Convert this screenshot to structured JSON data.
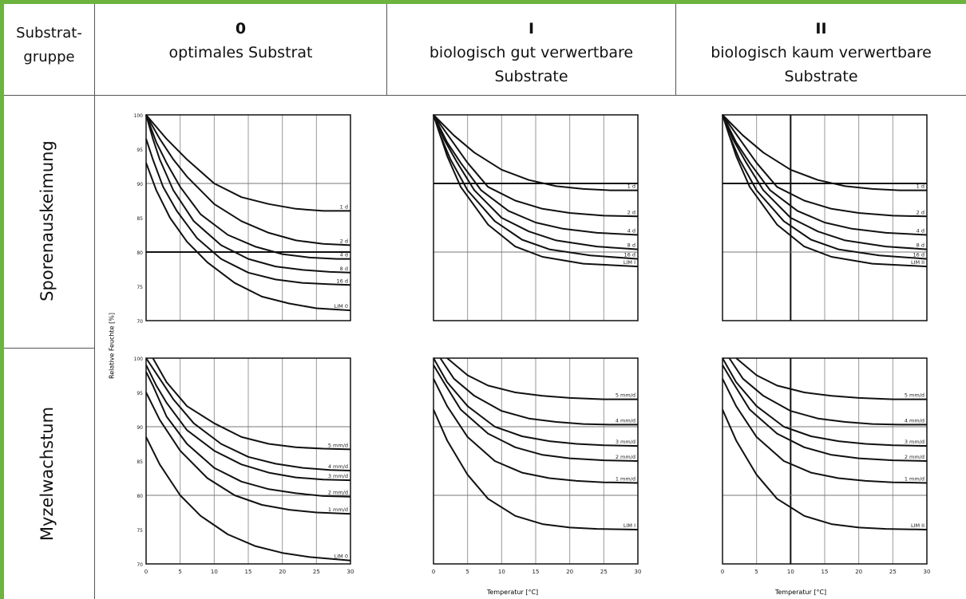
{
  "header": {
    "row_title": "Substrat-\ngruppe",
    "columns": [
      {
        "roman": "0",
        "desc": "optimales Substrat"
      },
      {
        "roman": "I",
        "desc": "biologisch gut verwertbare\nSubstrate"
      },
      {
        "roman": "II",
        "desc": "biologisch kaum verwertbare\nSubstrate"
      }
    ]
  },
  "rows": [
    {
      "label": "Sporenauskeimung"
    },
    {
      "label": "Myzelwachstum"
    }
  ],
  "axes": {
    "ylabel": "Relative Feuchte [%]",
    "xlabel": "Temperatur [°C]",
    "x_ticks": [
      "0",
      "5",
      "10",
      "15",
      "20",
      "25",
      "30"
    ]
  },
  "chart_data": [
    {
      "type": "line",
      "row": "Sporenauskeimung",
      "col": "0",
      "xlim": [
        0,
        30
      ],
      "ylim": [
        70,
        100
      ],
      "y_ticks": [
        "100",
        "95",
        "90",
        "85",
        "80",
        "75",
        "70"
      ],
      "series": [
        {
          "name": "1 d",
          "x": [
            0,
            3,
            6,
            10,
            14,
            18,
            22,
            26,
            30
          ],
          "y": [
            100,
            96.5,
            93.5,
            90,
            88,
            87,
            86.3,
            86,
            86
          ]
        },
        {
          "name": "2 d",
          "x": [
            0,
            2,
            4,
            6,
            10,
            14,
            18,
            22,
            26,
            30
          ],
          "y": [
            100,
            96.5,
            93.5,
            91,
            87,
            84.5,
            82.8,
            81.7,
            81.2,
            81
          ]
        },
        {
          "name": "4 d",
          "x": [
            0,
            1.5,
            3,
            5,
            8,
            12,
            16,
            20,
            24,
            28,
            30
          ],
          "y": [
            100,
            96,
            93,
            89.5,
            85.5,
            82.5,
            80.8,
            79.7,
            79.2,
            79,
            79
          ]
        },
        {
          "name": "8 d",
          "x": [
            0,
            1,
            2,
            4,
            7,
            11,
            15,
            19,
            23,
            27,
            30
          ],
          "y": [
            100,
            96.5,
            93.5,
            89,
            84.5,
            81,
            79,
            77.9,
            77.4,
            77.1,
            77
          ]
        },
        {
          "name": "16 d",
          "x": [
            0,
            1,
            2.5,
            4.5,
            7.5,
            11,
            15,
            19,
            23,
            27,
            30
          ],
          "y": [
            96.5,
            93.5,
            89.5,
            86,
            82,
            79,
            77,
            76,
            75.5,
            75.3,
            75.2
          ]
        },
        {
          "name": "LIM 0",
          "x": [
            0,
            1.5,
            3.5,
            6,
            9,
            13,
            17,
            21,
            25,
            30
          ],
          "y": [
            93,
            89,
            85,
            81.5,
            78.5,
            75.5,
            73.5,
            72.5,
            71.8,
            71.5
          ]
        }
      ]
    },
    {
      "type": "line",
      "row": "Sporenauskeimung",
      "col": "I",
      "xlim": [
        0,
        30
      ],
      "ylim": [
        70,
        100
      ],
      "y_ticks": [],
      "series": [
        {
          "name": "1 d",
          "x": [
            0,
            3,
            6,
            10,
            14,
            18,
            22,
            26,
            30
          ],
          "y": [
            100,
            97,
            94.5,
            92,
            90.5,
            89.6,
            89.2,
            89,
            89
          ]
        },
        {
          "name": "2 d",
          "x": [
            0,
            2.5,
            5,
            8,
            12,
            16,
            20,
            25,
            30
          ],
          "y": [
            100,
            96.5,
            93,
            89.5,
            87.5,
            86.3,
            85.7,
            85.3,
            85.2
          ]
        },
        {
          "name": "4 d",
          "x": [
            0,
            2,
            4,
            7,
            11,
            15,
            19,
            24,
            30
          ],
          "y": [
            100,
            96,
            93,
            89,
            86,
            84.3,
            83.4,
            82.8,
            82.5
          ]
        },
        {
          "name": "8 d",
          "x": [
            0,
            1.5,
            3.5,
            6,
            10,
            14,
            18,
            24,
            30
          ],
          "y": [
            100,
            96.5,
            93,
            89,
            85,
            83,
            81.7,
            80.8,
            80.4
          ]
        },
        {
          "name": "16 d",
          "x": [
            0,
            1,
            2.5,
            5,
            9,
            13,
            17,
            23,
            30
          ],
          "y": [
            100,
            97,
            93.5,
            89,
            84.5,
            81.8,
            80.4,
            79.5,
            79
          ]
        },
        {
          "name": "LIM I",
          "x": [
            0,
            1,
            2,
            4,
            8,
            12,
            16,
            22,
            30
          ],
          "y": [
            100,
            97,
            94,
            89.5,
            84,
            80.8,
            79.3,
            78.3,
            77.9
          ]
        }
      ]
    },
    {
      "type": "line",
      "row": "Sporenauskeimung",
      "col": "II",
      "xlim": [
        0,
        30
      ],
      "ylim": [
        70,
        100
      ],
      "y_ticks": [],
      "series": [
        {
          "name": "1 d",
          "x": [
            0,
            3,
            6,
            10,
            14,
            18,
            22,
            26,
            30
          ],
          "y": [
            100,
            97,
            94.5,
            92,
            90.5,
            89.6,
            89.2,
            89,
            89
          ]
        },
        {
          "name": "2 d",
          "x": [
            0,
            2.5,
            5,
            8,
            12,
            16,
            20,
            25,
            30
          ],
          "y": [
            100,
            96.5,
            93,
            89.5,
            87.5,
            86.3,
            85.7,
            85.3,
            85.2
          ]
        },
        {
          "name": "4 d",
          "x": [
            0,
            2,
            4,
            7,
            11,
            15,
            19,
            24,
            30
          ],
          "y": [
            100,
            96,
            93,
            89,
            86,
            84.3,
            83.4,
            82.8,
            82.5
          ]
        },
        {
          "name": "8 d",
          "x": [
            0,
            1.5,
            3.5,
            6,
            10,
            14,
            18,
            24,
            30
          ],
          "y": [
            100,
            96.5,
            93,
            89,
            85,
            83,
            81.7,
            80.8,
            80.4
          ]
        },
        {
          "name": "16 d",
          "x": [
            0,
            1,
            2.5,
            5,
            9,
            13,
            17,
            23,
            30
          ],
          "y": [
            100,
            97,
            93.5,
            89,
            84.5,
            81.8,
            80.4,
            79.5,
            79
          ]
        },
        {
          "name": "LIM II",
          "x": [
            0,
            1,
            2,
            4,
            8,
            12,
            16,
            22,
            30
          ],
          "y": [
            100,
            97,
            94,
            89.5,
            84,
            80.8,
            79.3,
            78.3,
            77.9
          ]
        }
      ]
    },
    {
      "type": "line",
      "row": "Myzelwachstum",
      "col": "0",
      "xlim": [
        0,
        30
      ],
      "ylim": [
        70,
        100
      ],
      "y_ticks": [
        "100",
        "95",
        "90",
        "85",
        "80",
        "75",
        "70"
      ],
      "series": [
        {
          "name": "5 mm/d",
          "x": [
            1,
            3,
            6,
            10,
            14,
            18,
            22,
            26,
            30
          ],
          "y": [
            100,
            96.5,
            93,
            90.5,
            88.5,
            87.5,
            87,
            86.8,
            86.7
          ]
        },
        {
          "name": "4 mm/d",
          "x": [
            0,
            2,
            4,
            7,
            11,
            15,
            19,
            23,
            27,
            30
          ],
          "y": [
            100,
            97,
            94,
            90.5,
            87.5,
            85.6,
            84.6,
            84,
            83.7,
            83.6
          ]
        },
        {
          "name": "3 mm/d",
          "x": [
            0,
            1.5,
            3,
            6,
            10,
            14,
            18,
            22,
            26,
            30
          ],
          "y": [
            99,
            96,
            93.5,
            89.5,
            86.5,
            84.5,
            83.3,
            82.6,
            82.3,
            82.2
          ]
        },
        {
          "name": "2 mm/d",
          "x": [
            0,
            1,
            3,
            6,
            10,
            14,
            18,
            22,
            26,
            30
          ],
          "y": [
            98,
            96,
            91.5,
            87.5,
            84,
            82,
            80.9,
            80.3,
            79.9,
            79.8
          ]
        },
        {
          "name": "1 mm/d",
          "x": [
            0,
            2,
            5,
            9,
            13,
            17,
            21,
            25,
            30
          ],
          "y": [
            95,
            91,
            86.5,
            82.5,
            80,
            78.6,
            77.9,
            77.5,
            77.3
          ]
        },
        {
          "name": "LIM 0",
          "x": [
            0,
            2,
            5,
            8,
            12,
            16,
            20,
            24,
            30
          ],
          "y": [
            88.5,
            84.5,
            80,
            77,
            74.3,
            72.6,
            71.6,
            71,
            70.5
          ]
        }
      ]
    },
    {
      "type": "line",
      "row": "Myzelwachstum",
      "col": "I",
      "xlim": [
        0,
        30
      ],
      "ylim": [
        70,
        100
      ],
      "y_ticks": [],
      "series": [
        {
          "name": "5 mm/d",
          "x": [
            2,
            5,
            8,
            12,
            16,
            20,
            25,
            30
          ],
          "y": [
            100,
            97.5,
            96,
            95,
            94.5,
            94.2,
            94,
            94
          ]
        },
        {
          "name": "4 mm/d",
          "x": [
            1,
            3,
            6,
            10,
            14,
            18,
            22,
            26,
            30
          ],
          "y": [
            100,
            97,
            94.5,
            92.3,
            91.2,
            90.7,
            90.4,
            90.3,
            90.3
          ]
        },
        {
          "name": "3 mm/d",
          "x": [
            0,
            2,
            5,
            9,
            13,
            17,
            21,
            25,
            30
          ],
          "y": [
            100,
            96.5,
            93,
            90,
            88.6,
            87.9,
            87.5,
            87.3,
            87.2
          ]
        },
        {
          "name": "2 mm/d",
          "x": [
            0,
            1.5,
            4,
            8,
            12,
            16,
            20,
            25,
            30
          ],
          "y": [
            99,
            96.5,
            92.5,
            89,
            87,
            85.9,
            85.4,
            85.1,
            85
          ]
        },
        {
          "name": "1 mm/d",
          "x": [
            0,
            2,
            5,
            9,
            13,
            17,
            21,
            25,
            30
          ],
          "y": [
            97,
            93,
            88.5,
            85,
            83.3,
            82.5,
            82.1,
            81.9,
            81.8
          ]
        },
        {
          "name": "LIM I",
          "x": [
            0,
            2,
            5,
            8,
            12,
            16,
            20,
            24,
            30
          ],
          "y": [
            92.5,
            88,
            83,
            79.5,
            77,
            75.8,
            75.3,
            75.1,
            75
          ]
        }
      ]
    },
    {
      "type": "line",
      "row": "Myzelwachstum",
      "col": "II",
      "xlim": [
        0,
        30
      ],
      "ylim": [
        70,
        100
      ],
      "y_ticks": [],
      "series": [
        {
          "name": "5 mm/d",
          "x": [
            2,
            5,
            8,
            12,
            16,
            20,
            25,
            30
          ],
          "y": [
            100,
            97.5,
            96,
            95,
            94.5,
            94.2,
            94,
            94
          ]
        },
        {
          "name": "4 mm/d",
          "x": [
            1,
            3,
            6,
            10,
            14,
            18,
            22,
            26,
            30
          ],
          "y": [
            100,
            97,
            94.5,
            92.3,
            91.2,
            90.7,
            90.4,
            90.3,
            90.3
          ]
        },
        {
          "name": "3 mm/d",
          "x": [
            0,
            2,
            5,
            9,
            13,
            17,
            21,
            25,
            30
          ],
          "y": [
            100,
            96.5,
            93,
            90,
            88.6,
            87.9,
            87.5,
            87.3,
            87.2
          ]
        },
        {
          "name": "2 mm/d",
          "x": [
            0,
            1.5,
            4,
            8,
            12,
            16,
            20,
            25,
            30
          ],
          "y": [
            99,
            96.5,
            92.5,
            89,
            87,
            85.9,
            85.4,
            85.1,
            85
          ]
        },
        {
          "name": "1 mm/d",
          "x": [
            0,
            2,
            5,
            9,
            13,
            17,
            21,
            25,
            30
          ],
          "y": [
            97,
            93,
            88.5,
            85,
            83.3,
            82.5,
            82.1,
            81.9,
            81.8
          ]
        },
        {
          "name": "LIM II",
          "x": [
            0,
            2,
            5,
            8,
            12,
            16,
            20,
            24,
            30
          ],
          "y": [
            92.5,
            88,
            83,
            79.5,
            77,
            75.8,
            75.3,
            75.1,
            75
          ]
        }
      ]
    }
  ]
}
